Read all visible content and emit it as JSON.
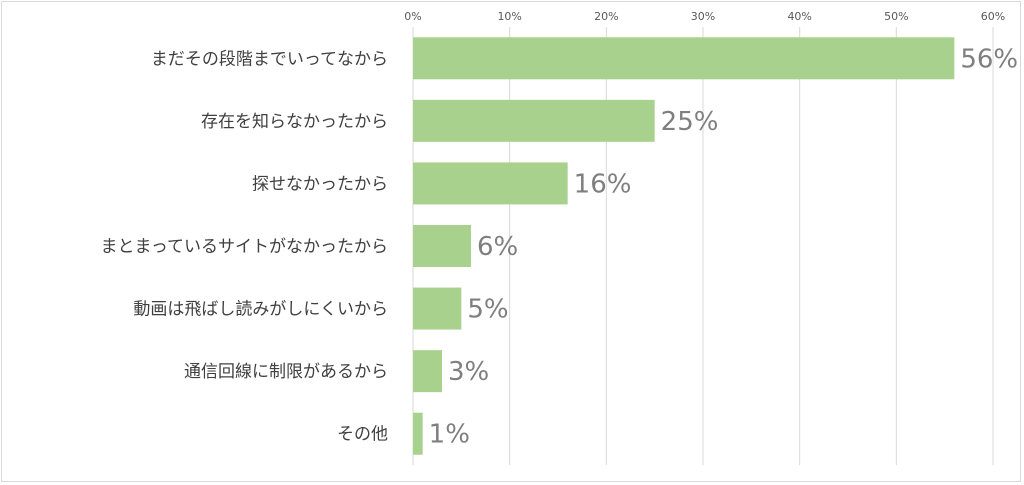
{
  "chart_data": {
    "type": "bar",
    "orientation": "horizontal",
    "categories": [
      "まだその段階までいってなから",
      "存在を知らなかったから",
      "探せなかったから",
      "まとまっているサイトがなかったから",
      "動画は飛ばし読みがしにくいから",
      "通信回線に制限があるから",
      "その他"
    ],
    "values": [
      56,
      25,
      16,
      6,
      5,
      3,
      1
    ],
    "data_labels": [
      "56%",
      "25%",
      "16%",
      "6%",
      "5%",
      "3%",
      "1%"
    ],
    "x_ticks": [
      "0%",
      "10%",
      "20%",
      "30%",
      "40%",
      "50%",
      "60%"
    ],
    "xlim": [
      0,
      60
    ],
    "grid": true,
    "legend": "none",
    "bar_color": "#a9d18e",
    "grid_color": "#d9d9d9"
  }
}
